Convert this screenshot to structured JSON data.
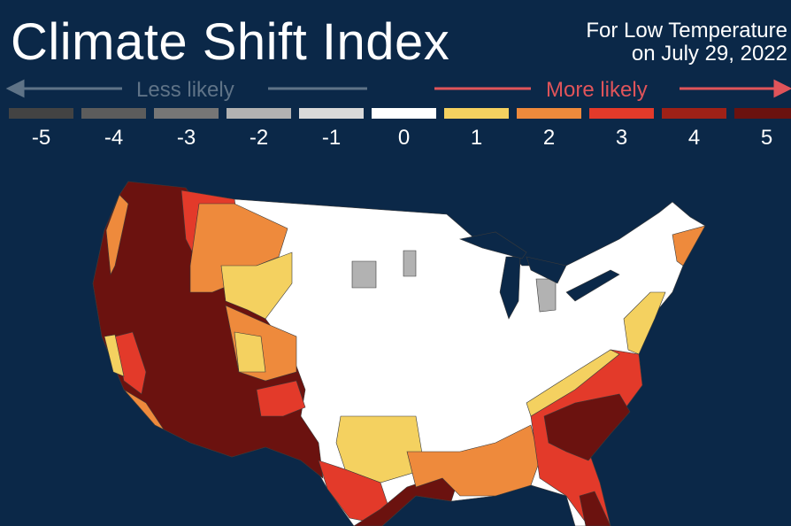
{
  "title": "Climate Shift Index",
  "subtitle_line1": "For Low Temperature",
  "subtitle_line2": "on July 29, 2022",
  "less_label": "Less likely",
  "more_label": "More likely",
  "legend": [
    {
      "label": "-5",
      "color": "#434343"
    },
    {
      "label": "-4",
      "color": "#5c5c5c"
    },
    {
      "label": "-3",
      "color": "#767676"
    },
    {
      "label": "-2",
      "color": "#b2b2b2"
    },
    {
      "label": "-1",
      "color": "#d9d9d9"
    },
    {
      "label": "0",
      "color": "#ffffff"
    },
    {
      "label": "1",
      "color": "#f4d160"
    },
    {
      "label": "2",
      "color": "#ee8a3c"
    },
    {
      "label": "3",
      "color": "#e33a2a"
    },
    {
      "label": "4",
      "color": "#9f2117"
    },
    {
      "label": "5",
      "color": "#6b120f"
    }
  ],
  "background_color": "#0b2848"
}
